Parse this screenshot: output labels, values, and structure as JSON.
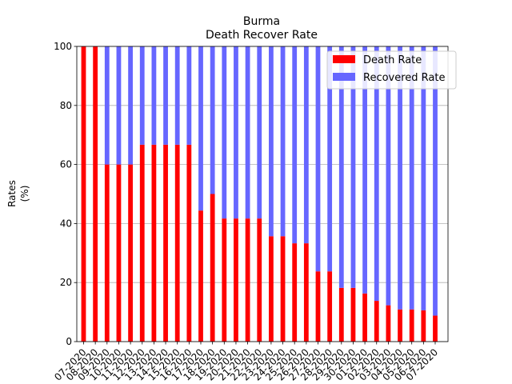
{
  "chart_data": {
    "type": "bar",
    "stacked": true,
    "title": "Burma",
    "subtitle": "Death Recover Rate",
    "xlabel": "",
    "ylabel": "Rates\n(%)",
    "ylabel_lines": [
      "Rates",
      "(%)"
    ],
    "ylim": [
      0,
      100
    ],
    "yticks": [
      0,
      20,
      40,
      60,
      80,
      100
    ],
    "grid": "y",
    "legend_position": "top-right",
    "categories": [
      "07-2020",
      "08-2020",
      "09-2020",
      "10-2020",
      "11-2020",
      "12-2020",
      "13-2020",
      "14-2020",
      "15-2020",
      "16-2020",
      "17-2020",
      "18-2020",
      "19-2020",
      "20-2020",
      "21-2020",
      "22-2020",
      "23-2020",
      "24-2020",
      "25-2020",
      "26-2020",
      "27-2020",
      "28-2020",
      "29-2020",
      "30-2020",
      "01-2020",
      "02-2020",
      "03-2020",
      "04-2020",
      "05-2020",
      "06-2020",
      "07-2020"
    ],
    "series": [
      {
        "name": "Death Rate",
        "color": "#ff0000",
        "values": [
          100,
          100,
          60,
          60,
          60,
          66.7,
          66.7,
          66.7,
          66.7,
          66.7,
          44.4,
          50,
          41.7,
          41.7,
          41.7,
          41.7,
          35.7,
          35.7,
          33.3,
          33.3,
          23.8,
          23.8,
          18.2,
          18.2,
          16.3,
          13.8,
          12.3,
          10.9,
          10.9,
          10.6,
          8.8
        ]
      },
      {
        "name": "Recovered Rate",
        "color": "#6666ff",
        "values": [
          0,
          0,
          40,
          40,
          40,
          33.3,
          33.3,
          33.3,
          33.3,
          33.3,
          55.6,
          50,
          58.3,
          58.3,
          58.3,
          58.3,
          64.3,
          64.3,
          66.7,
          66.7,
          76.2,
          76.2,
          81.8,
          81.8,
          83.7,
          86.2,
          87.7,
          89.1,
          89.1,
          89.4,
          91.2
        ]
      }
    ]
  }
}
